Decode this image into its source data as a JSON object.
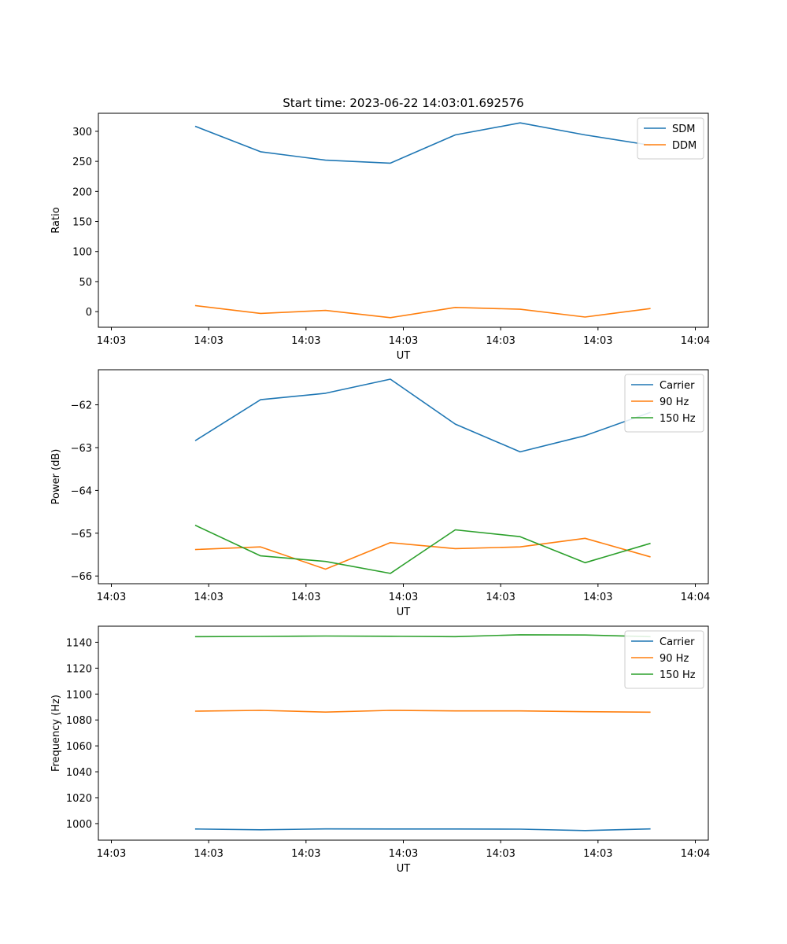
{
  "figure": {
    "title": "Start time: 2023-06-22 14:03:01.692576"
  },
  "colors": {
    "blue": "#1f77b4",
    "orange": "#ff7f0e",
    "green": "#2ca02c"
  },
  "chart_data": [
    {
      "type": "line",
      "title": "Start time: 2023-06-22 14:03:01.692576",
      "xlabel": "UT",
      "ylabel": "Ratio",
      "x": [
        1,
        2,
        3,
        4,
        5,
        6,
        7,
        8
      ],
      "xlim": [
        -0.5,
        8.9
      ],
      "ylim": [
        -26,
        330
      ],
      "xticks": [
        -0.3,
        1.2,
        2.7,
        4.2,
        5.7,
        7.2,
        8.7
      ],
      "xtick_labels": [
        "14:03",
        "14:03",
        "14:03",
        "14:03",
        "14:03",
        "14:03",
        "14:04"
      ],
      "yticks": [
        0,
        50,
        100,
        150,
        200,
        250,
        300
      ],
      "yticks_labels": [
        "0",
        "50",
        "100",
        "150",
        "200",
        "250",
        "300"
      ],
      "legend_position": "top-right",
      "series": [
        {
          "name": "SDM",
          "color": "#1f77b4",
          "values": [
            308,
            266,
            252,
            247,
            294,
            314,
            294,
            277
          ]
        },
        {
          "name": "DDM",
          "color": "#ff7f0e",
          "values": [
            10,
            -3,
            2,
            -10,
            7,
            4,
            -9,
            5
          ]
        }
      ]
    },
    {
      "type": "line",
      "title": "",
      "xlabel": "UT",
      "ylabel": "Power (dB)",
      "x": [
        1,
        2,
        3,
        4,
        5,
        6,
        7,
        8
      ],
      "xlim": [
        -0.5,
        8.9
      ],
      "ylim": [
        -66.18,
        -61.18
      ],
      "xticks": [
        -0.3,
        1.2,
        2.7,
        4.2,
        5.7,
        7.2,
        8.7
      ],
      "xtick_labels": [
        "14:03",
        "14:03",
        "14:03",
        "14:03",
        "14:03",
        "14:03",
        "14:04"
      ],
      "yticks": [
        -66,
        -65,
        -64,
        -63,
        -62
      ],
      "yticks_labels": [
        "−66",
        "−65",
        "−64",
        "−63",
        "−62"
      ],
      "legend_position": "top-right",
      "series": [
        {
          "name": "Carrier",
          "color": "#1f77b4",
          "values": [
            -62.83,
            -61.88,
            -61.73,
            -61.4,
            -62.45,
            -63.1,
            -62.72,
            -62.18
          ]
        },
        {
          "name": "90 Hz",
          "color": "#ff7f0e",
          "values": [
            -65.38,
            -65.32,
            -65.84,
            -65.22,
            -65.36,
            -65.32,
            -65.12,
            -65.55
          ]
        },
        {
          "name": "150 Hz",
          "color": "#2ca02c",
          "values": [
            -64.82,
            -65.53,
            -65.66,
            -65.94,
            -64.92,
            -65.08,
            -65.69,
            -65.24
          ]
        }
      ]
    },
    {
      "type": "line",
      "title": "",
      "xlabel": "UT",
      "ylabel": "Frequency (Hz)",
      "x": [
        1,
        2,
        3,
        4,
        5,
        6,
        7,
        8
      ],
      "xlim": [
        -0.5,
        8.9
      ],
      "ylim": [
        987.2,
        1152.4
      ],
      "xticks": [
        -0.3,
        1.2,
        2.7,
        4.2,
        5.7,
        7.2,
        8.7
      ],
      "xtick_labels": [
        "14:03",
        "14:03",
        "14:03",
        "14:03",
        "14:03",
        "14:03",
        "14:04"
      ],
      "yticks": [
        1000,
        1020,
        1040,
        1060,
        1080,
        1100,
        1120,
        1140
      ],
      "yticks_labels": [
        "1000",
        "1020",
        "1040",
        "1060",
        "1080",
        "1100",
        "1120",
        "1140"
      ],
      "legend_position": "top-right",
      "series": [
        {
          "name": "Carrier",
          "color": "#1f77b4",
          "values": [
            995.8,
            995.2,
            995.9,
            995.8,
            995.8,
            995.7,
            994.6,
            995.9
          ]
        },
        {
          "name": "90 Hz",
          "color": "#ff7f0e",
          "values": [
            1086.8,
            1087.4,
            1086.1,
            1087.4,
            1087.0,
            1087.0,
            1086.4,
            1086.0
          ]
        },
        {
          "name": "150 Hz",
          "color": "#2ca02c",
          "values": [
            1144.3,
            1144.5,
            1144.8,
            1144.6,
            1144.3,
            1145.8,
            1145.6,
            1144.3
          ]
        }
      ]
    }
  ]
}
